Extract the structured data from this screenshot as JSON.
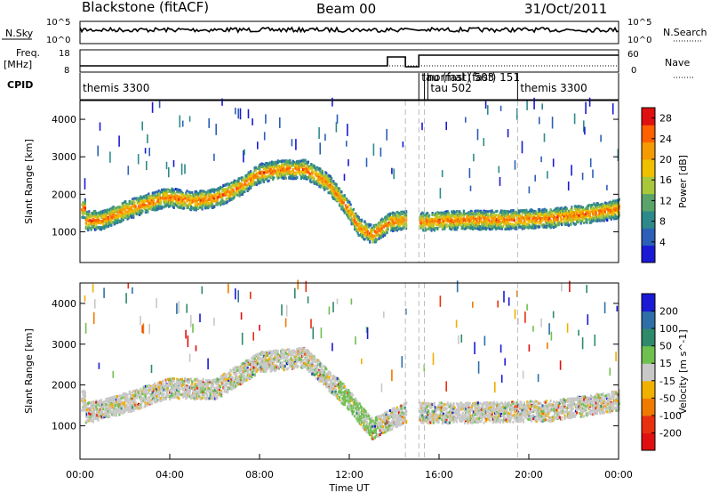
{
  "header": {
    "station": "Blackstone (fitACF)",
    "beam": "Beam 00",
    "date": "31/Oct/2011"
  },
  "top_panels": {
    "nsky_label": "N.Sky",
    "nsky_ticks": [
      "10^5",
      "10^0"
    ],
    "nsearch_label": "N.Search",
    "nsearch_ticks": [
      "10^5",
      "10^0"
    ],
    "freq_label": "Freq.",
    "freq_unit": "[MHz]",
    "freq_ticks": [
      "18",
      "8"
    ],
    "nave_label": "Nave",
    "nave_ticks": [
      "60",
      "0"
    ],
    "cpid_label": "CPID",
    "cpid_segments": [
      {
        "name": "themis 3300",
        "start_hour": 0.0,
        "end_hour": 14.5
      },
      {
        "name": "tau (fast) 503",
        "start_hour": 15.1,
        "end_hour": 15.35
      },
      {
        "name": "normal (fast) 151",
        "start_hour": 15.35,
        "end_hour": 15.5
      },
      {
        "name": "tau 502",
        "start_hour": 15.5,
        "end_hour": 19.5
      },
      {
        "name": "themis 3300",
        "start_hour": 19.5,
        "end_hour": 24.0
      }
    ]
  },
  "xaxis": {
    "label": "Time UT",
    "ticks": [
      "00:00",
      "04:00",
      "08:00",
      "12:00",
      "16:00",
      "20:00",
      "00:00"
    ]
  },
  "chart_data": [
    {
      "type": "heatmap",
      "quantity": "Power",
      "ylabel": "Slant Range [km]",
      "xlabel": "Time UT",
      "xlim_hours": [
        0,
        24
      ],
      "ylim": [
        180,
        4500
      ],
      "yticks": [
        1000,
        2000,
        3000,
        4000
      ],
      "colorbar_label": "Power [dB]",
      "colorbar_ticks": [
        4,
        8,
        12,
        16,
        20,
        24,
        28
      ],
      "colorbar_range": [
        0,
        30
      ],
      "colorbar_colors": [
        "#1a1ad6",
        "#2b5fb8",
        "#2e8a8a",
        "#5aa36a",
        "#a8c83a",
        "#f0c000",
        "#f59a00",
        "#ff6000",
        "#e01010"
      ],
      "main_band_trace": [
        {
          "hour": 0.2,
          "range": 1280
        },
        {
          "hour": 1.0,
          "range": 1300
        },
        {
          "hour": 2.0,
          "range": 1550
        },
        {
          "hour": 3.0,
          "range": 1750
        },
        {
          "hour": 3.8,
          "range": 1900
        },
        {
          "hour": 4.3,
          "range": 1870
        },
        {
          "hour": 5.0,
          "range": 1800
        },
        {
          "hour": 6.0,
          "range": 1880
        },
        {
          "hour": 7.0,
          "range": 2150
        },
        {
          "hour": 8.0,
          "range": 2550
        },
        {
          "hour": 9.0,
          "range": 2650
        },
        {
          "hour": 10.0,
          "range": 2650
        },
        {
          "hour": 11.0,
          "range": 2300
        },
        {
          "hour": 11.8,
          "range": 1700
        },
        {
          "hour": 12.4,
          "range": 1100
        },
        {
          "hour": 13.0,
          "range": 900
        },
        {
          "hour": 13.8,
          "range": 1250
        },
        {
          "hour": 14.4,
          "range": 1300
        },
        {
          "hour": 15.0,
          "range": 1250
        },
        {
          "hour": 17.0,
          "range": 1300
        },
        {
          "hour": 19.0,
          "range": 1300
        },
        {
          "hour": 21.0,
          "range": 1350
        },
        {
          "hour": 23.0,
          "range": 1500
        },
        {
          "hour": 24.0,
          "range": 1600
        }
      ],
      "data_gaps_hours": [
        [
          14.5,
          15.1
        ]
      ]
    },
    {
      "type": "heatmap",
      "quantity": "Velocity",
      "ylabel": "Slant Range [km]",
      "xlabel": "Time UT",
      "xlim_hours": [
        0,
        24
      ],
      "ylim": [
        180,
        4500
      ],
      "yticks": [
        1000,
        2000,
        3000,
        4000
      ],
      "colorbar_label": "Velocity [m s^-1]",
      "colorbar_ticks": [
        200,
        100,
        50,
        15,
        -15,
        -50,
        -100,
        -200
      ],
      "colorbar_range": [
        -250,
        250
      ],
      "colorbar_colors": [
        "#1a1ad6",
        "#2e6fa8",
        "#2e8a6a",
        "#70c050",
        "#c8c8c8",
        "#f0b000",
        "#f07a00",
        "#e83010",
        "#e01010"
      ],
      "main_band_trace": [
        {
          "hour": 0.2,
          "range": 1280
        },
        {
          "hour": 2.0,
          "range": 1550
        },
        {
          "hour": 4.0,
          "range": 1900
        },
        {
          "hour": 6.0,
          "range": 1880
        },
        {
          "hour": 8.0,
          "range": 2550
        },
        {
          "hour": 10.0,
          "range": 2650
        },
        {
          "hour": 11.8,
          "range": 1700
        },
        {
          "hour": 13.0,
          "range": 900
        },
        {
          "hour": 14.4,
          "range": 1300
        },
        {
          "hour": 17.0,
          "range": 1300
        },
        {
          "hour": 21.0,
          "range": 1350
        },
        {
          "hour": 24.0,
          "range": 1600
        }
      ],
      "data_gaps_hours": [
        [
          14.5,
          15.1
        ]
      ]
    }
  ]
}
